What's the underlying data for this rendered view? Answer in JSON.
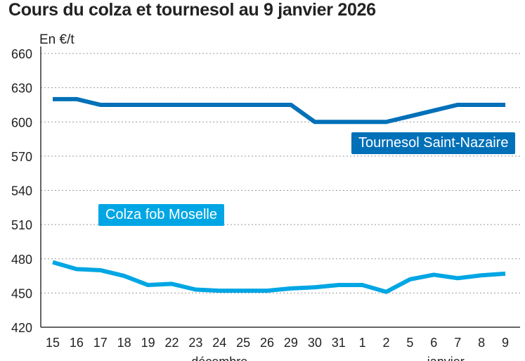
{
  "chart_data": {
    "type": "line",
    "title": "Cours du colza et tournesol au 9 janvier 2026",
    "ylabel": "En €/t",
    "ylim": [
      420,
      660
    ],
    "yticks": [
      420,
      450,
      480,
      510,
      540,
      570,
      600,
      630,
      660
    ],
    "grid": true,
    "categories": [
      "15",
      "16",
      "17",
      "18",
      "19",
      "22",
      "23",
      "24",
      "25",
      "26",
      "29",
      "30",
      "31",
      "1",
      "2",
      "5",
      "6",
      "7",
      "8",
      "9"
    ],
    "month_labels": [
      "décembre",
      "janvier"
    ],
    "series": [
      {
        "name": "Tournesol Saint-Nazaire",
        "color": "#0070b8",
        "values": [
          620,
          620,
          615,
          615,
          615,
          615,
          615,
          615,
          615,
          615,
          615,
          600,
          600,
          600,
          600,
          605,
          610,
          615,
          615,
          615
        ]
      },
      {
        "name": "Colza fob Moselle",
        "color": "#00a6e4",
        "values": [
          477,
          471,
          470,
          465,
          457,
          458,
          453,
          452,
          452,
          452,
          454,
          455,
          457,
          457,
          451,
          462,
          466,
          463,
          465.5,
          467
        ]
      }
    ]
  }
}
